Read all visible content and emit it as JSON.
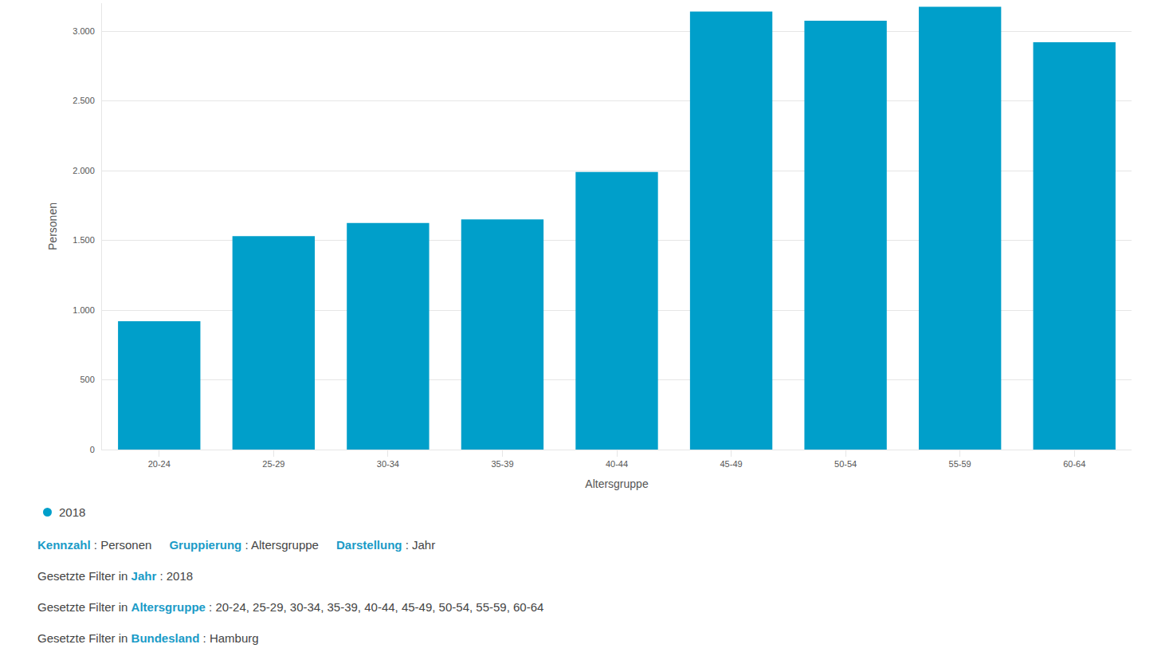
{
  "chart_data": {
    "type": "bar",
    "x_label": "Altersgruppe",
    "y_label": "Personen",
    "categories": [
      "20-24",
      "25-29",
      "30-34",
      "35-39",
      "40-44",
      "45-49",
      "50-54",
      "55-59",
      "60-64"
    ],
    "series": [
      {
        "name": "2018",
        "color": "#009fca",
        "values": [
          920,
          1530,
          1625,
          1650,
          1990,
          3140,
          3075,
          3175,
          2920
        ]
      }
    ],
    "ylim": [
      0,
      3200
    ],
    "yticks": [
      0,
      500,
      {
        "value": 1000,
        "label": "1.000"
      },
      {
        "value": 1500,
        "label": "1.500"
      },
      {
        "value": 2000,
        "label": "2.000"
      },
      {
        "value": 2500,
        "label": "2.500"
      },
      {
        "value": 3000,
        "label": "3.000"
      }
    ],
    "grid": true,
    "annotations": [
      [
        {
          "key": "Kennzahl",
          "value": " : Personen"
        },
        {
          "key": "Gruppierung",
          "value": " : Altersgruppe"
        },
        {
          "key": "Darstellung",
          "value": " : Jahr"
        }
      ],
      [
        {
          "prefix": "Gesetzte Filter in ",
          "key": "Jahr",
          "value": " : 2018"
        }
      ],
      [
        {
          "prefix": "Gesetzte Filter in ",
          "key": "Altersgruppe",
          "value": " : 20-24, 25-29, 30-34, 35-39, 40-44, 45-49, 50-54, 55-59, 60-64"
        }
      ],
      [
        {
          "prefix": "Gesetzte Filter in ",
          "key": "Bundesland",
          "value": " : Hamburg"
        }
      ]
    ]
  }
}
